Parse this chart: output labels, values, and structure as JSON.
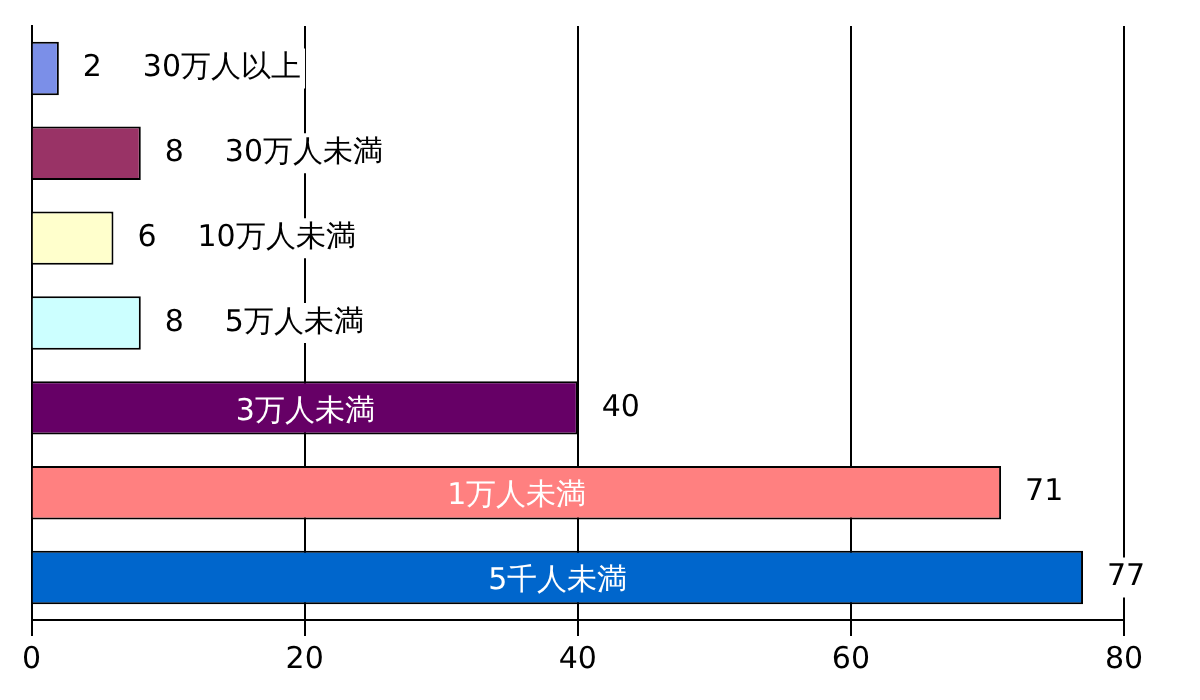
{
  "chart_data": {
    "type": "bar",
    "orientation": "horizontal",
    "categories": [
      "30万人以上",
      "30万人未満",
      "10万人未満",
      "5万人未満",
      "3万人未満",
      "1万人未満",
      "5千人未満"
    ],
    "values": [
      2,
      8,
      6,
      8,
      40,
      71,
      77
    ],
    "colors": [
      "#7b8fe8",
      "#993366",
      "#ffffcc",
      "#ccffff",
      "#660066",
      "#ff8080",
      "#0066cc"
    ],
    "xlim": [
      0,
      80
    ],
    "xticks": [
      0,
      20,
      40,
      60,
      80
    ],
    "grid": "x",
    "data_labels": true,
    "legend": false
  }
}
